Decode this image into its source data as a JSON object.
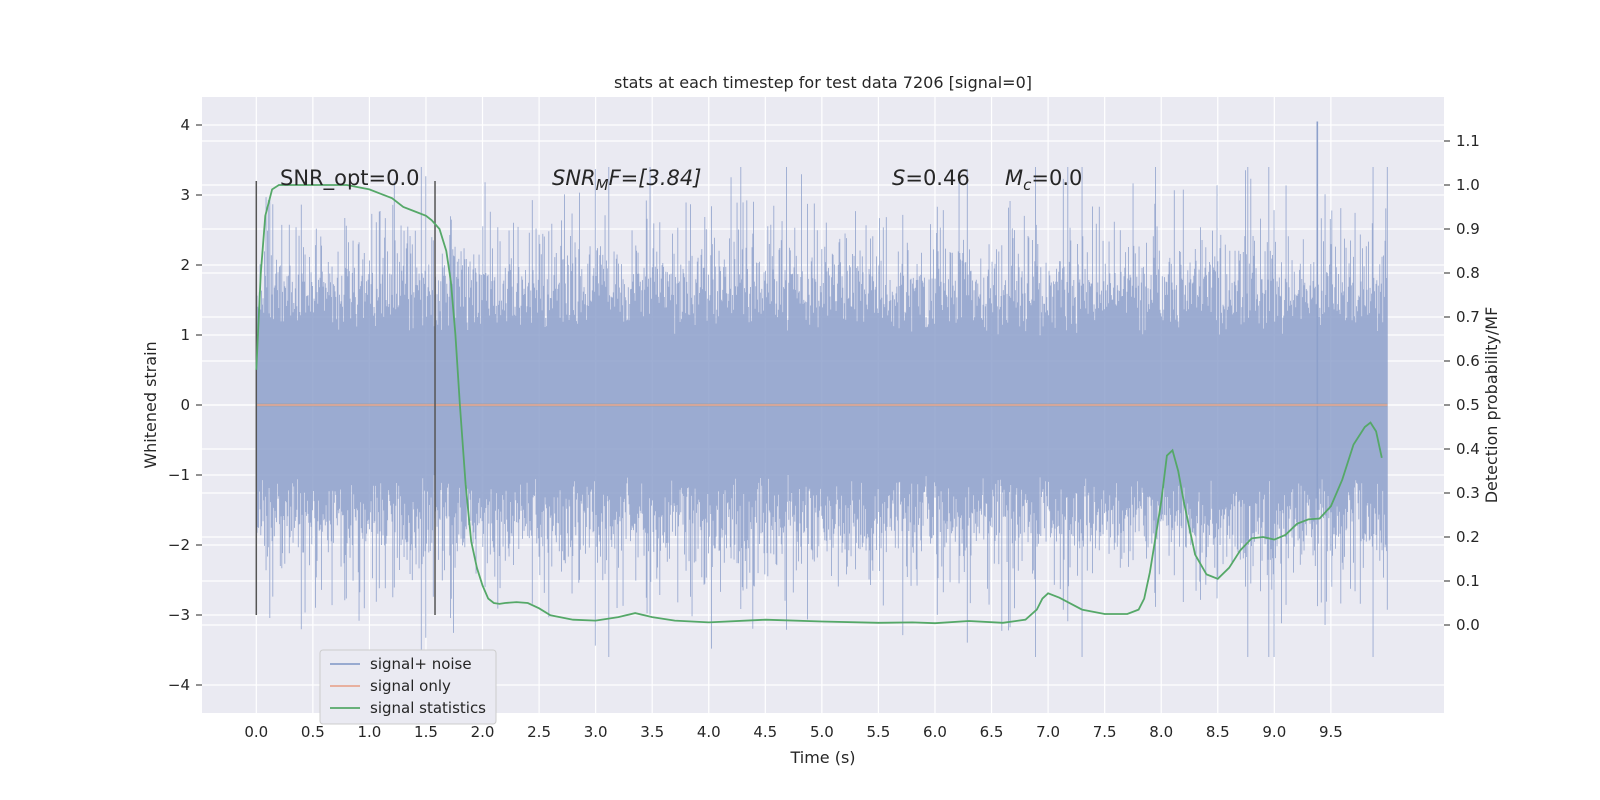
{
  "chart_data": {
    "type": "line",
    "title": "stats at each timestep for test data 7206 [signal=0]",
    "xlabel": "Time (s)",
    "ylabel_left": "Whitened strain",
    "ylabel_right": "Detection probability/MF",
    "xlim": [
      -0.48,
      10.5
    ],
    "ylim_left": [
      -4.4,
      4.4
    ],
    "ylim_right": [
      -0.2,
      1.2
    ],
    "x_ticks": [
      "0.0",
      "0.5",
      "1.0",
      "1.5",
      "2.0",
      "2.5",
      "3.0",
      "3.5",
      "4.0",
      "4.5",
      "5.0",
      "5.5",
      "6.0",
      "6.5",
      "7.0",
      "7.5",
      "8.0",
      "8.5",
      "9.0",
      "9.5"
    ],
    "y_left_ticks": [
      "4",
      "3",
      "2",
      "1",
      "0",
      "−1",
      "−2",
      "−3",
      "−4"
    ],
    "y_right_ticks": [
      "1.1",
      "1.0",
      "0.9",
      "0.8",
      "0.7",
      "0.6",
      "0.5",
      "0.4",
      "0.3",
      "0.2",
      "0.1",
      "0.0"
    ],
    "grid": true,
    "legend_position": "lower-left",
    "annotations": {
      "snr_opt": "SNR_opt=0.0",
      "snr_mf_main": "SNR",
      "snr_mf_sub": "M",
      "snr_mf_rest": "F=[3.84]",
      "s_main": "S",
      "s_rest": "=0.46",
      "mc_main": "M",
      "mc_sub": "c",
      "mc_rest": "=0.0"
    },
    "vertical_markers_x": [
      0.0,
      1.58
    ],
    "vertical_markers_y_range": [
      -3.0,
      3.2
    ],
    "noise_series": {
      "name": "signal+ noise",
      "color": "#8da0cb",
      "x_start": 0.0,
      "x_end": 10.0,
      "amplitude_typical": 1.3,
      "amplitude_peak": 4.05,
      "peak_x": 9.38
    },
    "signal_series": {
      "name": "signal only",
      "color": "#e8a893",
      "x": [
        0.0,
        10.0
      ],
      "y": [
        0.0,
        0.0
      ]
    },
    "stat_series": {
      "name": "signal statistics",
      "color": "#55a868",
      "axis": "right",
      "x": [
        0.0,
        0.04,
        0.08,
        0.14,
        0.2,
        0.3,
        0.5,
        0.8,
        1.0,
        1.1,
        1.2,
        1.3,
        1.4,
        1.5,
        1.55,
        1.62,
        1.68,
        1.72,
        1.76,
        1.8,
        1.85,
        1.9,
        1.95,
        2.0,
        2.05,
        2.1,
        2.15,
        2.2,
        2.3,
        2.4,
        2.5,
        2.6,
        2.8,
        3.0,
        3.2,
        3.35,
        3.5,
        3.7,
        4.0,
        4.5,
        5.0,
        5.5,
        5.8,
        6.0,
        6.3,
        6.6,
        6.8,
        6.9,
        6.95,
        7.0,
        7.1,
        7.3,
        7.5,
        7.7,
        7.8,
        7.85,
        7.9,
        7.95,
        8.0,
        8.05,
        8.1,
        8.15,
        8.2,
        8.3,
        8.4,
        8.5,
        8.6,
        8.7,
        8.8,
        8.9,
        9.0,
        9.1,
        9.2,
        9.3,
        9.4,
        9.5,
        9.6,
        9.7,
        9.8,
        9.85,
        9.9,
        9.95
      ],
      "y": [
        0.58,
        0.8,
        0.93,
        0.99,
        1.0,
        1.0,
        1.0,
        1.0,
        0.99,
        0.98,
        0.97,
        0.95,
        0.94,
        0.93,
        0.92,
        0.9,
        0.85,
        0.78,
        0.66,
        0.5,
        0.32,
        0.19,
        0.13,
        0.09,
        0.06,
        0.05,
        0.048,
        0.05,
        0.052,
        0.05,
        0.038,
        0.022,
        0.012,
        0.01,
        0.018,
        0.027,
        0.018,
        0.01,
        0.006,
        0.012,
        0.008,
        0.005,
        0.006,
        0.004,
        0.009,
        0.005,
        0.012,
        0.035,
        0.06,
        0.072,
        0.062,
        0.035,
        0.025,
        0.025,
        0.035,
        0.06,
        0.12,
        0.2,
        0.28,
        0.385,
        0.397,
        0.35,
        0.28,
        0.16,
        0.115,
        0.105,
        0.13,
        0.17,
        0.197,
        0.2,
        0.194,
        0.205,
        0.23,
        0.24,
        0.242,
        0.27,
        0.33,
        0.41,
        0.45,
        0.46,
        0.44,
        0.38
      ]
    }
  }
}
